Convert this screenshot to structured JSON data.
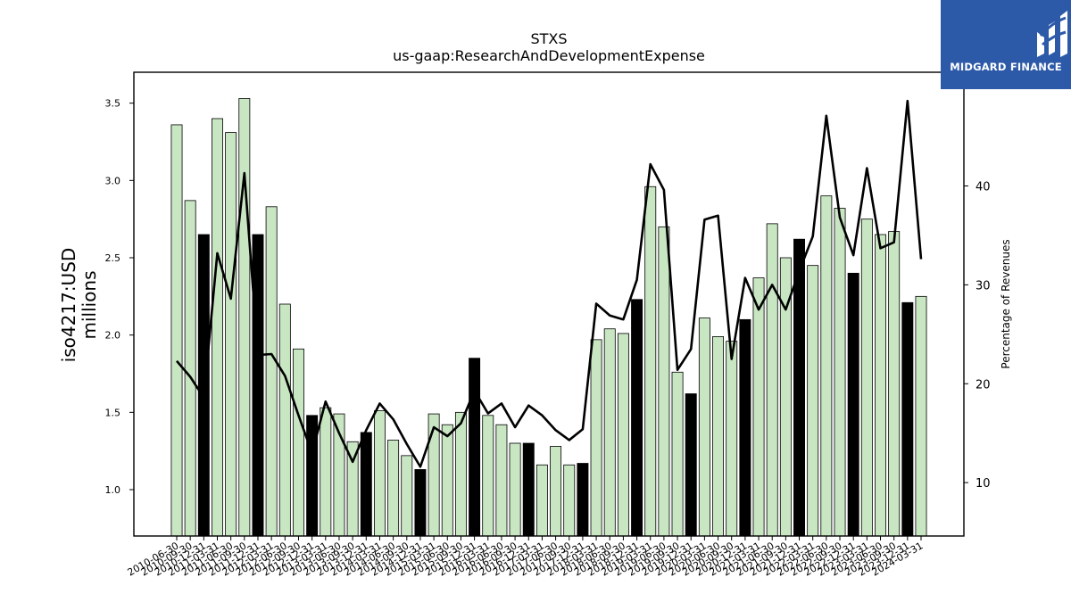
{
  "chart_data": {
    "type": "bar",
    "title": "STXS",
    "subtitle": "us-gaap:ResearchAndDevelopmentExpense",
    "ylabel": "iso4217:USD\nmillions",
    "y2label": "Percentage of Revenues",
    "ylim": [
      0.7,
      3.7
    ],
    "y2lim": [
      4.6,
      51.5
    ],
    "yticks": [
      "1.0",
      "1.5",
      "2.0",
      "2.5",
      "3.0",
      "3.5"
    ],
    "y2ticks": [
      "10",
      "20",
      "30",
      "40"
    ],
    "grid": false,
    "colors": {
      "quarter_bar": "#c9e6c3",
      "annual_bar": "#000000",
      "line": "#000000",
      "bar_edge": "#000000"
    },
    "categories": [
      "2010-06-30",
      "2010-09-30",
      "2010-12-31",
      "2011-03-31",
      "2011-06-30",
      "2011-09-30",
      "2011-12-31",
      "2012-03-31",
      "2012-06-30",
      "2012-09-30",
      "2012-12-31",
      "2013-03-31",
      "2013-06-30",
      "2013-09-30",
      "2013-12-31",
      "2014-03-31",
      "2014-06-30",
      "2014-09-30",
      "2014-12-31",
      "2015-03-31",
      "2015-06-30",
      "2015-09-30",
      "2015-12-31",
      "2016-03-31",
      "2016-06-30",
      "2016-09-30",
      "2016-12-31",
      "2017-03-31",
      "2017-06-30",
      "2017-09-30",
      "2017-12-31",
      "2018-03-31",
      "2018-06-30",
      "2018-09-30",
      "2018-12-31",
      "2019-03-31",
      "2019-06-30",
      "2019-09-30",
      "2019-12-31",
      "2020-03-31",
      "2020-06-30",
      "2020-09-30",
      "2020-12-31",
      "2021-03-31",
      "2021-06-30",
      "2021-09-30",
      "2021-12-31",
      "2022-03-31",
      "2022-06-30",
      "2022-09-30",
      "2022-12-31",
      "2023-03-31",
      "2023-06-30",
      "2023-09-30",
      "2023-12-31",
      "2024-03-31"
    ],
    "series": [
      {
        "type": "bar",
        "values": [
          3.36,
          2.87,
          2.65,
          3.4,
          3.31,
          3.53,
          2.65,
          2.83,
          2.2,
          1.91,
          1.48,
          1.53,
          1.49,
          1.31,
          1.37,
          1.51,
          1.32,
          1.22,
          1.13,
          1.49,
          1.42,
          1.5,
          1.85,
          1.48,
          1.42,
          1.3,
          1.3,
          1.16,
          1.28,
          1.16,
          1.17,
          1.97,
          2.04,
          2.01,
          2.23,
          2.96,
          2.7,
          1.76,
          1.62,
          2.11,
          1.99,
          1.96,
          2.1,
          2.37,
          2.72,
          2.5,
          2.62,
          2.45,
          2.9,
          2.82,
          2.4,
          2.75,
          2.65,
          2.67,
          2.21,
          2.25
        ],
        "annual": [
          false,
          false,
          true,
          false,
          false,
          false,
          true,
          false,
          false,
          false,
          true,
          false,
          false,
          false,
          true,
          false,
          false,
          false,
          true,
          false,
          false,
          false,
          true,
          false,
          false,
          false,
          true,
          false,
          false,
          false,
          true,
          false,
          false,
          false,
          true,
          false,
          false,
          false,
          true,
          false,
          false,
          false,
          true,
          false,
          false,
          false,
          true,
          false,
          false,
          false,
          true,
          false,
          false,
          false,
          true,
          false
        ]
      },
      {
        "type": "line",
        "axis": "right",
        "values": [
          22.3,
          20.7,
          18.6,
          33.2,
          28.6,
          41.3,
          22.9,
          23.0,
          20.8,
          16.8,
          13.0,
          18.2,
          15.0,
          12.1,
          15.3,
          18.0,
          16.4,
          13.9,
          11.6,
          15.6,
          14.7,
          16.0,
          19.3,
          17.0,
          18.0,
          15.6,
          17.8,
          16.8,
          15.3,
          14.3,
          15.4,
          28.1,
          26.9,
          26.5,
          30.5,
          42.2,
          39.6,
          21.4,
          23.5,
          36.6,
          37.0,
          22.5,
          30.7,
          27.5,
          30.0,
          27.5,
          31.4,
          34.9,
          47.1,
          36.8,
          33.0,
          41.8,
          33.7,
          34.3,
          48.6,
          32.6
        ]
      }
    ]
  },
  "logo": {
    "text": "MIDGARD FINANCE",
    "icon": "midgard-logo-icon"
  }
}
